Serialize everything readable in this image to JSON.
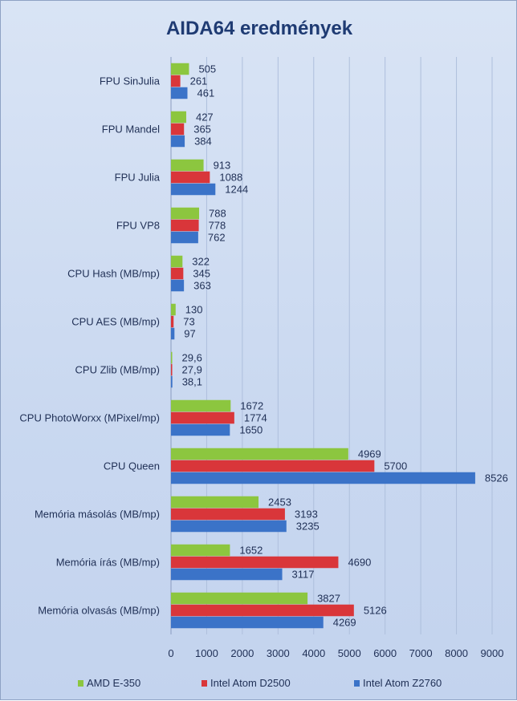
{
  "chart_data": {
    "type": "bar",
    "orientation": "horizontal",
    "title": "AIDA64 eredmények",
    "xlabel": "",
    "ylabel": "",
    "xlim": [
      0,
      9000
    ],
    "ticks": [
      "0",
      "1000",
      "2000",
      "3000",
      "4000",
      "5000",
      "6000",
      "7000",
      "8000",
      "9000"
    ],
    "grid": "vertical",
    "legend_position": "bottom",
    "categories": [
      "FPU SinJulia",
      "FPU Mandel",
      "FPU Julia",
      "FPU VP8",
      "CPU Hash (MB/mp)",
      "CPU AES (MB/mp)",
      "CPU Zlib (MB/mp)",
      "CPU PhotoWorxx (MPixel/mp)",
      "CPU Queen",
      "Memória másolás (MB/mp)",
      "Memória írás (MB/mp)",
      "Memória olvasás (MB/mp)"
    ],
    "series": [
      {
        "name": "AMD E-350",
        "color": "#8cc63f",
        "values": [
          505,
          427,
          913,
          788,
          322,
          130,
          29.6,
          1672,
          4969,
          2453,
          1652,
          3827
        ],
        "labels": [
          "505",
          "427",
          "913",
          "788",
          "322",
          "130",
          "29,6",
          "1672",
          "4969",
          "2453",
          "1652",
          "3827"
        ]
      },
      {
        "name": "Intel Atom D2500",
        "color": "#d9363a",
        "values": [
          261,
          365,
          1088,
          778,
          345,
          73,
          27.9,
          1774,
          5700,
          3193,
          4690,
          5126
        ],
        "labels": [
          "261",
          "365",
          "1088",
          "778",
          "345",
          "73",
          "27,9",
          "1774",
          "5700",
          "3193",
          "4690",
          "5126"
        ]
      },
      {
        "name": "Intel Atom Z2760",
        "color": "#3b73c8",
        "values": [
          461,
          384,
          1244,
          762,
          363,
          97,
          38.1,
          1650,
          8526,
          3235,
          3117,
          4269
        ],
        "labels": [
          "461",
          "384",
          "1244",
          "762",
          "363",
          "97",
          "38,1",
          "1650",
          "8526",
          "3235",
          "3117",
          "4269"
        ]
      }
    ]
  }
}
